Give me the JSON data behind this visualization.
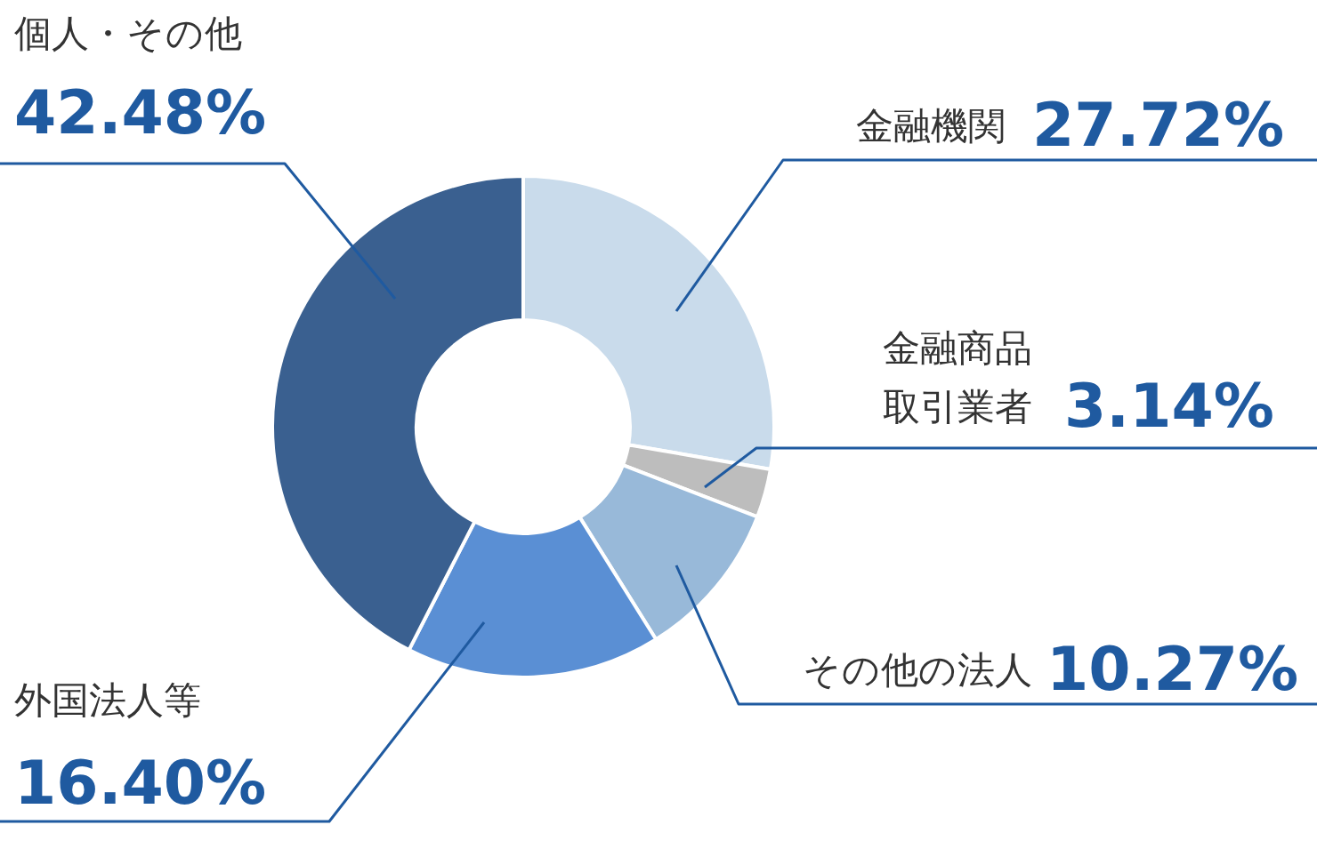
{
  "chart_data": {
    "type": "donut",
    "categories": [
      "金融機関",
      "金融商品取引業者",
      "その他の法人",
      "外国法人等",
      "個人・その他"
    ],
    "values": [
      27.72,
      3.14,
      10.27,
      16.4,
      42.48
    ],
    "colors": [
      "#c9dbeb",
      "#bdbdbd",
      "#98b9d9",
      "#5a8fd4",
      "#3a6090"
    ],
    "value_labels": [
      "27.72%",
      "3.14%",
      "10.27%",
      "16.40%",
      "42.48%"
    ]
  }
}
